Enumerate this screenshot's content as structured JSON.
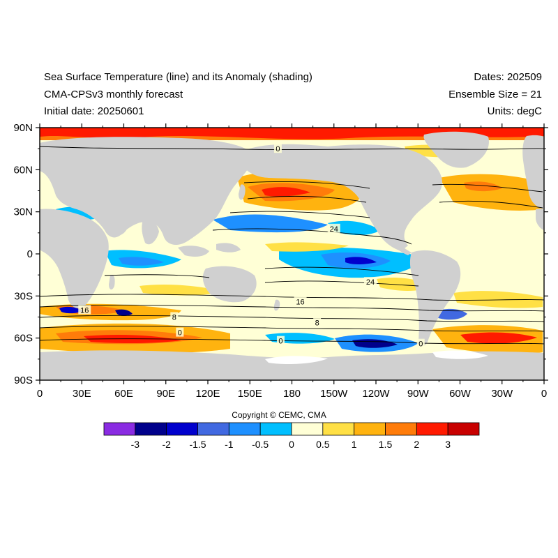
{
  "header": {
    "title_line1": "Sea Surface Temperature (line) and its Anomaly (shading)",
    "title_line2": "CMA-CPSv3 monthly forecast",
    "title_line3": "Initial date: 20250601",
    "dates": "Dates: 202509",
    "ensemble": "Ensemble Size = 21",
    "units": "Units: degC"
  },
  "axes": {
    "lat_ticks": [
      {
        "value": 90,
        "label": "90N"
      },
      {
        "value": 60,
        "label": "60N"
      },
      {
        "value": 30,
        "label": "30N"
      },
      {
        "value": 0,
        "label": "0"
      },
      {
        "value": -30,
        "label": "30S"
      },
      {
        "value": -60,
        "label": "60S"
      },
      {
        "value": -90,
        "label": "90S"
      }
    ],
    "lon_ticks": [
      {
        "value": 0,
        "label": "0"
      },
      {
        "value": 30,
        "label": "30E"
      },
      {
        "value": 60,
        "label": "60E"
      },
      {
        "value": 90,
        "label": "90E"
      },
      {
        "value": 120,
        "label": "120E"
      },
      {
        "value": 150,
        "label": "150E"
      },
      {
        "value": 180,
        "label": "180"
      },
      {
        "value": 210,
        "label": "150W"
      },
      {
        "value": 240,
        "label": "120W"
      },
      {
        "value": 270,
        "label": "90W"
      },
      {
        "value": 300,
        "label": "60W"
      },
      {
        "value": 330,
        "label": "30W"
      },
      {
        "value": 360,
        "label": "0"
      }
    ]
  },
  "contour_labels": [
    {
      "text": "0",
      "lon": 170,
      "lat": 75
    },
    {
      "text": "24",
      "lon": 210,
      "lat": 18
    },
    {
      "text": "24",
      "lon": 236,
      "lat": -20
    },
    {
      "text": "16",
      "lon": 186,
      "lat": -34
    },
    {
      "text": "16",
      "lon": 32,
      "lat": -40
    },
    {
      "text": "8",
      "lon": 96,
      "lat": -45
    },
    {
      "text": "8",
      "lon": 198,
      "lat": -49
    },
    {
      "text": "0",
      "lon": 100,
      "lat": -56
    },
    {
      "text": "0",
      "lon": 172,
      "lat": -62
    },
    {
      "text": "0",
      "lon": 272,
      "lat": -64
    }
  ],
  "colorbar": {
    "colors": [
      "#8a2be2",
      "#00008b",
      "#0000cd",
      "#4169e1",
      "#1e90ff",
      "#00bfff",
      "#ffffd6",
      "#ffe045",
      "#ffb30f",
      "#ff7c0a",
      "#ff1a00",
      "#c80000"
    ],
    "labels": [
      "-3",
      "-2",
      "-1.5",
      "-1",
      "-0.5",
      "0",
      "0.5",
      "1",
      "1.5",
      "2",
      "3"
    ]
  },
  "copyright": "Copyright © CEMC, CMA"
}
